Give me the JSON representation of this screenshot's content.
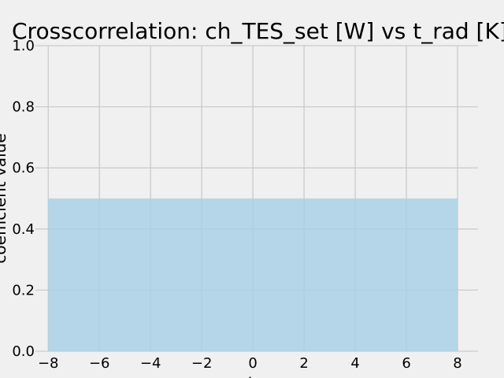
{
  "chart_data": {
    "type": "area",
    "title": "Crosscorrelation: ch_TES_set [W] vs t_rad [K]",
    "xlabel": "lag",
    "ylabel": "coefficient value",
    "xlim": [
      -8.5,
      8.8
    ],
    "ylim": [
      0.0,
      1.0
    ],
    "xticks": [
      -8,
      -6,
      -4,
      -2,
      0,
      2,
      4,
      6,
      8
    ],
    "xtick_labels": [
      "−8",
      "−6",
      "−4",
      "−2",
      "0",
      "2",
      "4",
      "6",
      "8"
    ],
    "yticks": [
      0.0,
      0.2,
      0.4,
      0.6,
      0.8,
      1.0
    ],
    "ytick_labels": [
      "0.0",
      "0.2",
      "0.4",
      "0.6",
      "0.8",
      "1.0"
    ],
    "grid": true,
    "series": [
      {
        "x": [
          -8,
          8
        ],
        "y": [
          0.5,
          0.5
        ]
      }
    ],
    "colors": {
      "fill": "#a6cfe6",
      "grid": "#cbcbcb",
      "background": "#f0f0f0"
    }
  }
}
